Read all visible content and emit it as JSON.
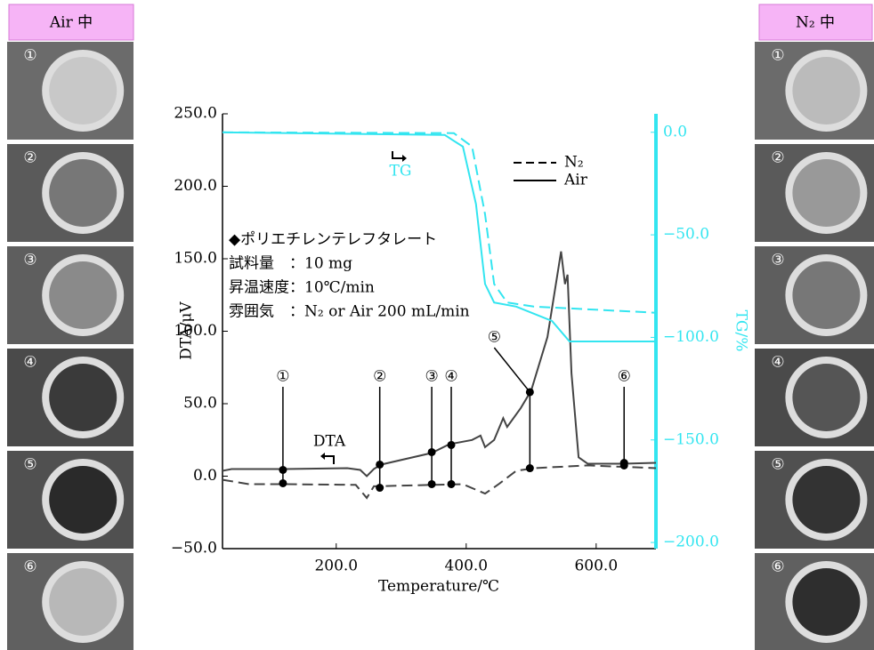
{
  "chart_data": {
    "type": "line",
    "ylabel": "DTA/μV",
    "y2label": "TG/%",
    "xlabel": "Temperature/℃",
    "xlim": [
      25,
      692
    ],
    "xticks": [
      {
        "value": 200,
        "label": "200.0"
      },
      {
        "value": 400,
        "label": "400.0"
      },
      {
        "value": 600,
        "label": "600.0"
      }
    ],
    "ylim": [
      -50,
      250
    ],
    "yticks": [
      {
        "value": -50,
        "label": "−50.0"
      },
      {
        "value": 0,
        "label": "0.0"
      },
      {
        "value": 50,
        "label": "50.0"
      },
      {
        "value": 100,
        "label": "100.0"
      },
      {
        "value": 150,
        "label": "150.0"
      },
      {
        "value": 200,
        "label": "200.0"
      },
      {
        "value": 250,
        "label": "250.0"
      }
    ],
    "y2lim": [
      -203,
      9
    ],
    "y2ticks": [
      {
        "value": 0,
        "label": "0.0"
      },
      {
        "value": -50,
        "label": "−50.0"
      },
      {
        "value": -100,
        "label": "−100.0"
      },
      {
        "value": -150,
        "label": "−150.0"
      },
      {
        "value": -200,
        "label": "−200.0"
      }
    ],
    "y2color": "#33e5f0",
    "series": [
      {
        "name": "N₂",
        "color": "#444444",
        "style": "dashed",
        "axis": "y",
        "x": [
          25,
          66,
          121,
          230,
          247,
          258,
          395,
          429,
          450,
          477,
          504,
          587,
          692
        ],
        "values": [
          -2.5,
          -5.5,
          -5.5,
          -6,
          -15,
          -7,
          -5.5,
          -12,
          -5.5,
          3.7,
          5.5,
          7.4,
          5.5
        ]
      },
      {
        "name": "Air",
        "color": "#444444",
        "style": "solid",
        "axis": "y",
        "x": [
          25,
          39,
          121,
          217,
          237,
          247,
          258,
          269,
          347,
          374,
          409,
          422,
          429,
          443,
          457,
          463,
          484,
          500,
          525,
          546,
          552,
          556,
          562,
          573,
          587,
          641,
          692
        ],
        "values": [
          3.7,
          4.9,
          4.9,
          5.5,
          4.3,
          0,
          5,
          8,
          16,
          22,
          25,
          28,
          20,
          25,
          40,
          34,
          47,
          59,
          96,
          155,
          132.5,
          139,
          71,
          13,
          8.6,
          8.6,
          9.2
        ]
      },
      {
        "name": "N₂",
        "color": "#33e5f0",
        "style": "dashed",
        "axis": "y2",
        "x": [
          25,
          381,
          409,
          429,
          443,
          463,
          504,
          692
        ],
        "values": [
          0,
          -0.4,
          -7,
          -40,
          -74,
          -83,
          -85,
          -88
        ]
      },
      {
        "name": "Air",
        "color": "#33e5f0",
        "style": "solid",
        "axis": "y2",
        "x": [
          25,
          367,
          395,
          415,
          429,
          443,
          477,
          532,
          559,
          692
        ],
        "values": [
          0,
          -1.3,
          -7,
          -35,
          -74,
          -83,
          -85,
          -92,
          -102,
          -102
        ]
      }
    ],
    "markers": {
      "labels": [
        "①",
        "②",
        "③",
        "④",
        "⑤",
        "⑥"
      ],
      "x": [
        118,
        267,
        347,
        377,
        498,
        643
      ],
      "air": [
        4.3,
        8,
        16.6,
        21.5,
        58,
        9.2
      ],
      "n2": [
        -4.9,
        -8,
        -5.5,
        -5.5,
        5.5,
        7.4
      ]
    },
    "annotations": {
      "tg": "TG",
      "dta": "DTA",
      "info": [
        "◆ポリエチレンテレフタレート",
        "試料量　：10 mg",
        "昇温速度：10℃/min",
        "雰囲気　：N₂ or Air 200 mL/min"
      ]
    }
  },
  "panels": {
    "air_header": "Air 中",
    "n2_header": "N₂ 中",
    "labels": [
      "①",
      "②",
      "③",
      "④",
      "⑤",
      "⑥"
    ]
  }
}
